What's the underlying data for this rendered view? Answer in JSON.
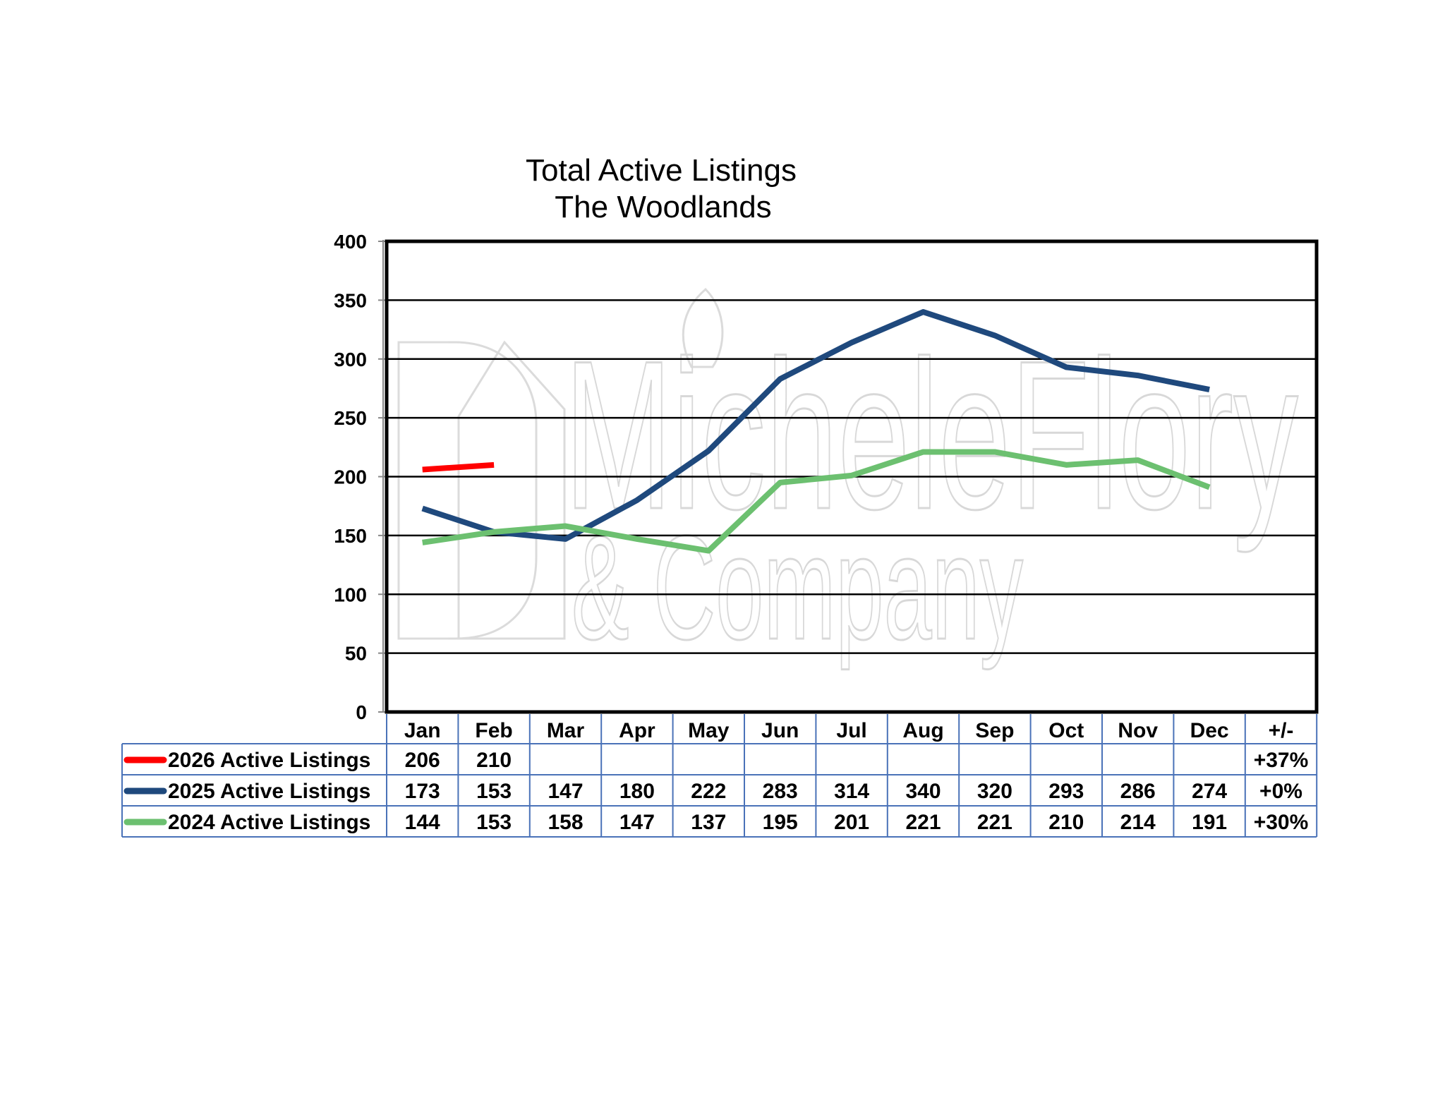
{
  "chart_data": {
    "type": "line",
    "title": "Total Active Listings",
    "subtitle": "The Woodlands",
    "categories": [
      "Jan",
      "Feb",
      "Mar",
      "Apr",
      "May",
      "Jun",
      "Jul",
      "Aug",
      "Sep",
      "Oct",
      "Nov",
      "Dec"
    ],
    "ylim": [
      0,
      400
    ],
    "yticks": [
      0,
      50,
      100,
      150,
      200,
      250,
      300,
      350,
      400
    ],
    "grid": true,
    "legend": "data-table",
    "change_header": "+/-",
    "series": [
      {
        "name": "2026 Active Listings",
        "color": "#ff0000",
        "values": [
          206,
          210,
          null,
          null,
          null,
          null,
          null,
          null,
          null,
          null,
          null,
          null
        ],
        "change": "+37%"
      },
      {
        "name": "2025 Active Listings",
        "color": "#1f497d",
        "values": [
          173,
          153,
          147,
          180,
          222,
          283,
          314,
          340,
          320,
          293,
          286,
          274
        ],
        "change": "+0%"
      },
      {
        "name": "2024 Active Listings",
        "color": "#6cc070",
        "values": [
          144,
          153,
          158,
          147,
          137,
          195,
          201,
          221,
          221,
          210,
          214,
          191
        ],
        "change": "+30%"
      }
    ]
  },
  "watermark": {
    "line1": "MicheleFlory",
    "line2": "& Company"
  }
}
